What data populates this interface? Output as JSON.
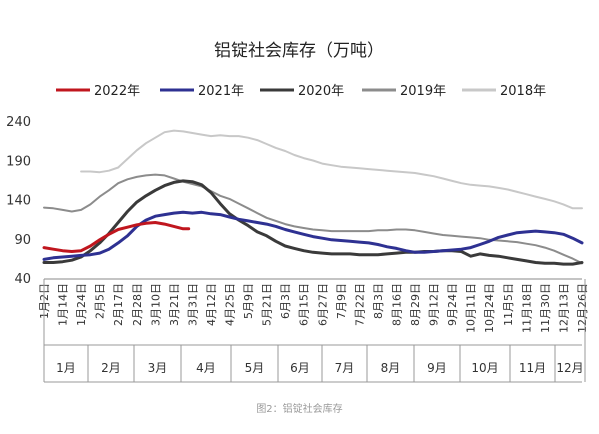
{
  "caption": "图2：铝锭社会库存",
  "chart_data": {
    "type": "line",
    "title": "铝锭社会库存（万吨）",
    "xlabel": "",
    "ylabel": "",
    "ylim": [
      40,
      240
    ],
    "yticks": [
      40,
      90,
      140,
      190,
      240
    ],
    "grid": false,
    "legend_position": "top",
    "x_ticks": [
      "1月2日",
      "1月14日",
      "1月24日",
      "2月5日",
      "2月17日",
      "2月28日",
      "3月10日",
      "3月21日",
      "3月31日",
      "4月12日",
      "4月25日",
      "5月9日",
      "5月21日",
      "6月3日",
      "6月15日",
      "6月27日",
      "7月9日",
      "7月22日",
      "8月3日",
      "8月16日",
      "8月29日",
      "9月12日",
      "9月24日",
      "10月11日",
      "10月24日",
      "11月5日",
      "11月18日",
      "11月30日",
      "12月13日",
      "12月26日"
    ],
    "months": [
      "1月",
      "2月",
      "3月",
      "4月",
      "5月",
      "6月",
      "7月",
      "8月",
      "9月",
      "10月",
      "11月",
      "12月"
    ],
    "series": [
      {
        "name": "2022年",
        "color": "#c0161e",
        "width": 3,
        "x": [
          0,
          0.5,
          1,
          1.5,
          2,
          2.5,
          3,
          3.5,
          4,
          4.5,
          5,
          5.5,
          6,
          6.5,
          7,
          7.5,
          7.8
        ],
        "y": [
          80,
          78,
          76,
          75,
          76,
          82,
          90,
          97,
          103,
          106,
          109,
          111,
          112,
          110,
          107,
          104,
          104
        ]
      },
      {
        "name": "2021年",
        "color": "#2e3192",
        "width": 3,
        "x": [
          0,
          0.5,
          1,
          1.5,
          2,
          2.5,
          3,
          3.5,
          4,
          4.5,
          5,
          5.5,
          6,
          6.5,
          7,
          7.5,
          8,
          8.5,
          9,
          9.5,
          10,
          10.5,
          11,
          11.5,
          12,
          12.5,
          13,
          13.5,
          14,
          14.5,
          15,
          15.5,
          16,
          16.5,
          17,
          17.5,
          18,
          18.5,
          19,
          19.5,
          20,
          20.5,
          21,
          21.5,
          22,
          22.5,
          23,
          23.5,
          24,
          24.5,
          25,
          25.5,
          26,
          26.5,
          27,
          27.5,
          28,
          28.5,
          29
        ],
        "y": [
          65,
          67,
          68,
          69,
          70,
          71,
          73,
          78,
          86,
          95,
          107,
          115,
          120,
          122,
          124,
          125,
          124,
          125,
          123,
          122,
          119,
          116,
          114,
          112,
          110,
          107,
          103,
          100,
          97,
          94,
          92,
          90,
          89,
          88,
          87,
          86,
          84,
          81,
          79,
          76,
          74,
          74,
          75,
          76,
          77,
          78,
          80,
          84,
          88,
          93,
          96,
          99,
          100,
          101,
          100,
          99,
          97,
          92,
          86
        ]
      },
      {
        "name": "2020年",
        "color": "#3a3a3a",
        "width": 3,
        "x": [
          0,
          0.5,
          1,
          1.5,
          2,
          2.5,
          3,
          3.5,
          4,
          4.5,
          5,
          5.5,
          6,
          6.5,
          7,
          7.5,
          8,
          8.5,
          9,
          9.5,
          10,
          10.5,
          11,
          11.5,
          12,
          12.5,
          13,
          13.5,
          14,
          14.5,
          15,
          15.5,
          16,
          16.5,
          17,
          17.5,
          18,
          18.5,
          19,
          19.5,
          20,
          20.5,
          21,
          21.5,
          22,
          22.5,
          23,
          23.5,
          24,
          24.5,
          25,
          25.5,
          26,
          26.5,
          27,
          27.5,
          28,
          28.5,
          29
        ],
        "y": [
          61,
          61,
          62,
          64,
          68,
          76,
          86,
          98,
          112,
          126,
          138,
          146,
          153,
          159,
          163,
          165,
          164,
          160,
          150,
          136,
          123,
          115,
          108,
          100,
          95,
          88,
          82,
          79,
          76,
          74,
          73,
          72,
          72,
          72,
          71,
          71,
          71,
          72,
          73,
          74,
          74,
          75,
          75,
          76,
          76,
          75,
          69,
          72,
          70,
          69,
          67,
          65,
          63,
          61,
          60,
          60,
          59,
          59,
          61
        ]
      },
      {
        "name": "2019年",
        "color": "#8c8c8c",
        "width": 2,
        "x": [
          0,
          0.5,
          1,
          1.5,
          2,
          2.5,
          3,
          3.5,
          4,
          4.5,
          5,
          5.5,
          6,
          6.5,
          7,
          7.5,
          8,
          8.5,
          9,
          9.5,
          10,
          10.5,
          11,
          11.5,
          12,
          12.5,
          13,
          13.5,
          14,
          14.5,
          15,
          15.5,
          16,
          16.5,
          17,
          17.5,
          18,
          18.5,
          19,
          19.5,
          20,
          20.5,
          21,
          21.5,
          22,
          22.5,
          23,
          23.5,
          24,
          24.5,
          25,
          25.5,
          26,
          26.5,
          27,
          27.5,
          28,
          28.5,
          29
        ],
        "y": [
          131,
          130,
          128,
          126,
          128,
          135,
          145,
          153,
          162,
          167,
          170,
          172,
          173,
          172,
          168,
          164,
          161,
          158,
          152,
          146,
          142,
          136,
          130,
          124,
          118,
          114,
          110,
          107,
          105,
          103,
          102,
          101,
          101,
          101,
          101,
          101,
          102,
          102,
          103,
          103,
          102,
          100,
          98,
          96,
          95,
          94,
          93,
          92,
          90,
          89,
          88,
          87,
          85,
          83,
          80,
          76,
          71,
          66,
          60
        ]
      },
      {
        "name": "2018年",
        "color": "#c8c8c8",
        "width": 2,
        "x": [
          2,
          2.5,
          3,
          3.5,
          4,
          4.5,
          5,
          5.5,
          6,
          6.5,
          7,
          7.5,
          8,
          8.5,
          9,
          9.5,
          10,
          10.5,
          11,
          11.5,
          12,
          12.5,
          13,
          13.5,
          14,
          14.5,
          15,
          15.5,
          16,
          16.5,
          17,
          17.5,
          18,
          18.5,
          19,
          19.5,
          20,
          20.5,
          21,
          21.5,
          22,
          22.5,
          23,
          23.5,
          24,
          24.5,
          25,
          25.5,
          26,
          26.5,
          27,
          27.5,
          28,
          28.5,
          29
        ],
        "y": [
          177,
          177,
          176,
          178,
          182,
          193,
          204,
          213,
          220,
          227,
          229,
          228,
          226,
          224,
          222,
          223,
          222,
          222,
          220,
          217,
          212,
          207,
          203,
          198,
          194,
          191,
          187,
          185,
          183,
          182,
          181,
          180,
          179,
          178,
          177,
          176,
          175,
          173,
          171,
          168,
          165,
          162,
          160,
          159,
          158,
          156,
          154,
          151,
          148,
          145,
          142,
          139,
          135,
          130,
          130
        ]
      }
    ]
  }
}
